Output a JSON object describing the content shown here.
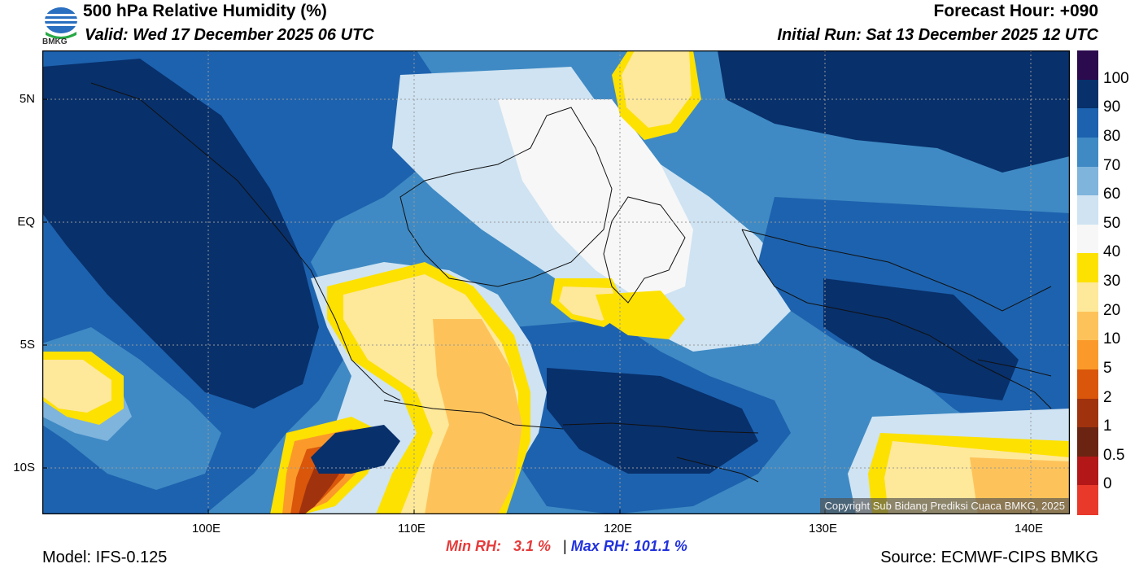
{
  "header": {
    "title": "500 hPa Relative Humidity (%)",
    "valid": "Valid: Wed 17 December 2025 06 UTC",
    "forecast_hour": "Forecast Hour: +090",
    "initial_run": "Initial Run: Sat 13 December 2025 12 UTC",
    "logo_text": "BMKG"
  },
  "map": {
    "lat_labels": [
      "5N",
      "EQ",
      "5S",
      "10S"
    ],
    "lon_labels": [
      "100E",
      "110E",
      "120E",
      "130E",
      "140E"
    ],
    "copyright": "Copyright Sub Bidang Prediksi Cuaca BMKG, 2025"
  },
  "colorbar": {
    "labels": [
      "100",
      "90",
      "80",
      "70",
      "60",
      "50",
      "40",
      "30",
      "20",
      "10",
      "5",
      "2",
      "1",
      "0.5",
      "0"
    ],
    "colors": [
      "#2b0a4d",
      "#08306b",
      "#1d62ae",
      "#3f8ac4",
      "#7fb4dc",
      "#cfe3f2",
      "#f7f7f7",
      "#fde100",
      "#fee89a",
      "#fdc35a",
      "#fb9a2a",
      "#d9560b",
      "#a0330e",
      "#6b2412",
      "#b31717",
      "#e8392b"
    ]
  },
  "footer": {
    "model": "Model: IFS-0.125",
    "source": "Source: ECMWF-CIPS BMKG",
    "min_label": "Min RH:",
    "min_value": "3.1 %",
    "separator": "|",
    "max_label": "Max RH:",
    "max_value": "101.1 %"
  }
}
